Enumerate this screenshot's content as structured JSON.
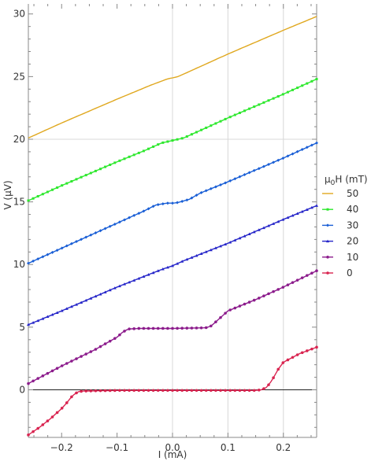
{
  "chart_data": {
    "type": "line",
    "xlabel": "I (mA)",
    "ylabel": "V (μV)",
    "xlim": [
      -0.26,
      0.26
    ],
    "ylim": [
      -3.8,
      30.8
    ],
    "x_ticks": [
      -0.2,
      -0.1,
      0.0,
      0.1,
      0.2
    ],
    "x_tick_labels": [
      "−0.2",
      "−0.1",
      "0.0",
      "0.1",
      "0.2"
    ],
    "y_ticks": [
      0,
      5,
      10,
      15,
      20,
      25,
      30
    ],
    "y_tick_labels": [
      "0",
      "5",
      "10",
      "15",
      "20",
      "25",
      "30"
    ],
    "grid": "major gridlines at x = 0, 0.1, 0.2 and y = 20",
    "legend": {
      "title_prefix": "μ",
      "title_sub": "0",
      "title_suffix": "H (mT)",
      "placement": "right"
    },
    "series": [
      {
        "name": "50",
        "color": "#e0a81f",
        "marker": "line",
        "x": [
          -0.26,
          -0.2,
          -0.1,
          -0.04,
          -0.01,
          0.0,
          0.01,
          0.04,
          0.1,
          0.2,
          0.26
        ],
        "y": [
          20.1,
          21.3,
          23.2,
          24.3,
          24.8,
          24.9,
          25.0,
          25.6,
          26.8,
          28.7,
          29.8
        ]
      },
      {
        "name": "40",
        "color": "#2ee82e",
        "marker": "square",
        "x": [
          -0.26,
          -0.2,
          -0.1,
          -0.05,
          -0.02,
          0.0,
          0.02,
          0.05,
          0.1,
          0.2,
          0.26
        ],
        "y": [
          15.1,
          16.3,
          18.2,
          19.1,
          19.7,
          19.9,
          20.1,
          20.7,
          21.7,
          23.6,
          24.8
        ]
      },
      {
        "name": "30",
        "color": "#1a5fd6",
        "marker": "diamond",
        "x": [
          -0.26,
          -0.2,
          -0.1,
          -0.05,
          -0.03,
          -0.01,
          0.0,
          0.01,
          0.03,
          0.05,
          0.1,
          0.2,
          0.26
        ],
        "y": [
          10.1,
          11.3,
          13.3,
          14.3,
          14.75,
          14.9,
          14.9,
          14.95,
          15.2,
          15.7,
          16.6,
          18.5,
          19.7
        ]
      },
      {
        "name": "20",
        "color": "#2626c9",
        "marker": "triangle",
        "x": [
          -0.26,
          -0.2,
          -0.1,
          -0.02,
          0.0,
          0.02,
          0.1,
          0.2,
          0.26
        ],
        "y": [
          5.2,
          6.3,
          8.2,
          9.6,
          9.9,
          10.3,
          11.7,
          13.6,
          14.7
        ]
      },
      {
        "name": "10",
        "color": "#8c1c8c",
        "marker": "circle",
        "x": [
          -0.26,
          -0.2,
          -0.14,
          -0.1,
          -0.09,
          -0.08,
          -0.06,
          0.0,
          0.06,
          0.07,
          0.08,
          0.09,
          0.1,
          0.15,
          0.2,
          0.26
        ],
        "y": [
          0.5,
          1.9,
          3.2,
          4.2,
          4.6,
          4.85,
          4.9,
          4.9,
          4.95,
          5.1,
          5.5,
          5.9,
          6.3,
          7.2,
          8.2,
          9.5
        ]
      },
      {
        "name": "0",
        "color": "#d92450",
        "marker": "circle",
        "x": [
          -0.26,
          -0.24,
          -0.22,
          -0.2,
          -0.19,
          -0.18,
          -0.17,
          -0.16,
          -0.1,
          0.0,
          0.1,
          0.15,
          0.16,
          0.17,
          0.18,
          0.19,
          0.2,
          0.23,
          0.26
        ],
        "y": [
          -3.6,
          -3.0,
          -2.3,
          -1.5,
          -1.0,
          -0.45,
          -0.15,
          -0.1,
          -0.05,
          -0.05,
          -0.05,
          -0.05,
          0.0,
          0.2,
          0.8,
          1.6,
          2.2,
          2.9,
          3.4
        ]
      }
    ]
  }
}
